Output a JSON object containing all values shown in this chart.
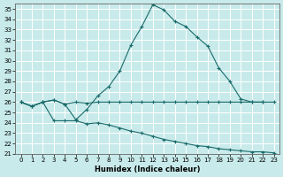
{
  "xlabel": "Humidex (Indice chaleur)",
  "bg_color": "#c8eaea",
  "grid_color": "#ffffff",
  "line_color": "#1a6b6b",
  "ylim": [
    21,
    35.5
  ],
  "xlim": [
    -0.5,
    23.5
  ],
  "yticks": [
    21,
    22,
    23,
    24,
    25,
    26,
    27,
    28,
    29,
    30,
    31,
    32,
    33,
    34,
    35
  ],
  "xticks": [
    0,
    1,
    2,
    3,
    4,
    5,
    6,
    7,
    8,
    9,
    10,
    11,
    12,
    13,
    14,
    15,
    16,
    17,
    18,
    19,
    20,
    21,
    22,
    23
  ],
  "line1_x": [
    0,
    1,
    2,
    3,
    4,
    5,
    6,
    7,
    8,
    9,
    10,
    11,
    12,
    13,
    14,
    15,
    16,
    17,
    18,
    19,
    20,
    21,
    22
  ],
  "line1_y": [
    26.0,
    25.6,
    26.0,
    26.2,
    25.8,
    24.3,
    25.3,
    26.6,
    27.5,
    29.0,
    31.5,
    33.3,
    35.4,
    34.9,
    33.8,
    33.3,
    32.3,
    31.4,
    29.3,
    28.0,
    26.3,
    26.0,
    26.0
  ],
  "line2_x": [
    0,
    1,
    2,
    3,
    4,
    5,
    6,
    7,
    8,
    9,
    10,
    11,
    12,
    13,
    14,
    15,
    16,
    17,
    18,
    19,
    20,
    21,
    22,
    23
  ],
  "line2_y": [
    26.0,
    25.6,
    26.0,
    26.2,
    25.8,
    26.0,
    25.9,
    26.0,
    26.0,
    26.0,
    26.0,
    26.0,
    26.0,
    26.0,
    26.0,
    26.0,
    26.0,
    26.0,
    26.0,
    26.0,
    26.0,
    26.0,
    26.0,
    26.0
  ],
  "line3_x": [
    0,
    1,
    2,
    3,
    4,
    5,
    6,
    7,
    8,
    9,
    10,
    11,
    12,
    13,
    14,
    15,
    16,
    17,
    18,
    19,
    20,
    21,
    22,
    23
  ],
  "line3_y": [
    26.0,
    25.6,
    26.0,
    24.2,
    24.2,
    24.2,
    23.9,
    24.0,
    23.8,
    23.5,
    23.2,
    23.0,
    22.7,
    22.4,
    22.2,
    22.0,
    21.8,
    21.7,
    21.5,
    21.4,
    21.3,
    21.2,
    21.2,
    21.1
  ]
}
